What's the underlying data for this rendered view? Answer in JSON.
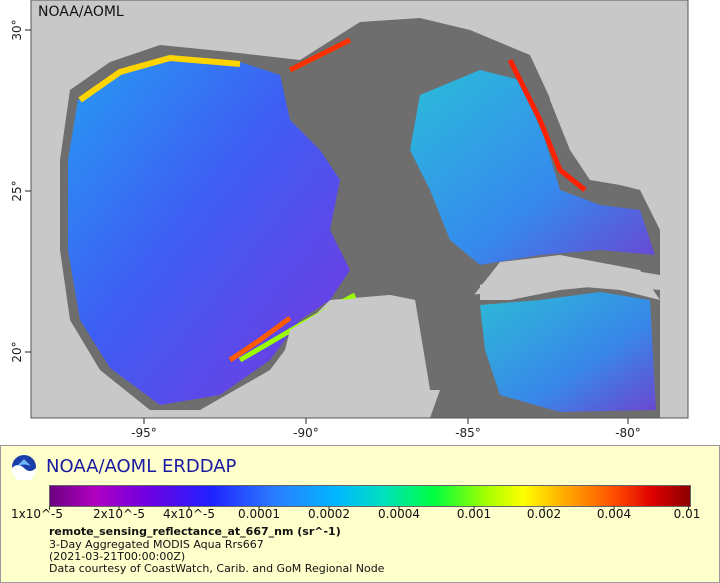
{
  "map": {
    "corner_label": "NOAA/AOML",
    "lon_ticks": [
      "-95°",
      "-90°",
      "-85°",
      "-80°"
    ],
    "lat_ticks": [
      "30°",
      "25°",
      "20°"
    ],
    "colors": {
      "land": "#c8c8c8",
      "no_data": "#6e6e6e",
      "frame": "#ffffff"
    }
  },
  "legend": {
    "brand": "NOAA/AOML ERDDAP",
    "colorbar_ticks": [
      "1x10^-5",
      "2x10^-5",
      "4x10^-5",
      "0.0001",
      "0.0002",
      "0.0004",
      "0.001",
      "0.002",
      "0.004",
      "0.01"
    ],
    "variable": "remote_sensing_reflectance_at_667_nm (sr^-1)",
    "dataset": "3-Day Aggregated MODIS Aqua Rrs667",
    "time": "(2021-03-21T00:00:00Z)",
    "credit": "Data courtesy of CoastWatch, Carib. and GoM Regional Node"
  }
}
